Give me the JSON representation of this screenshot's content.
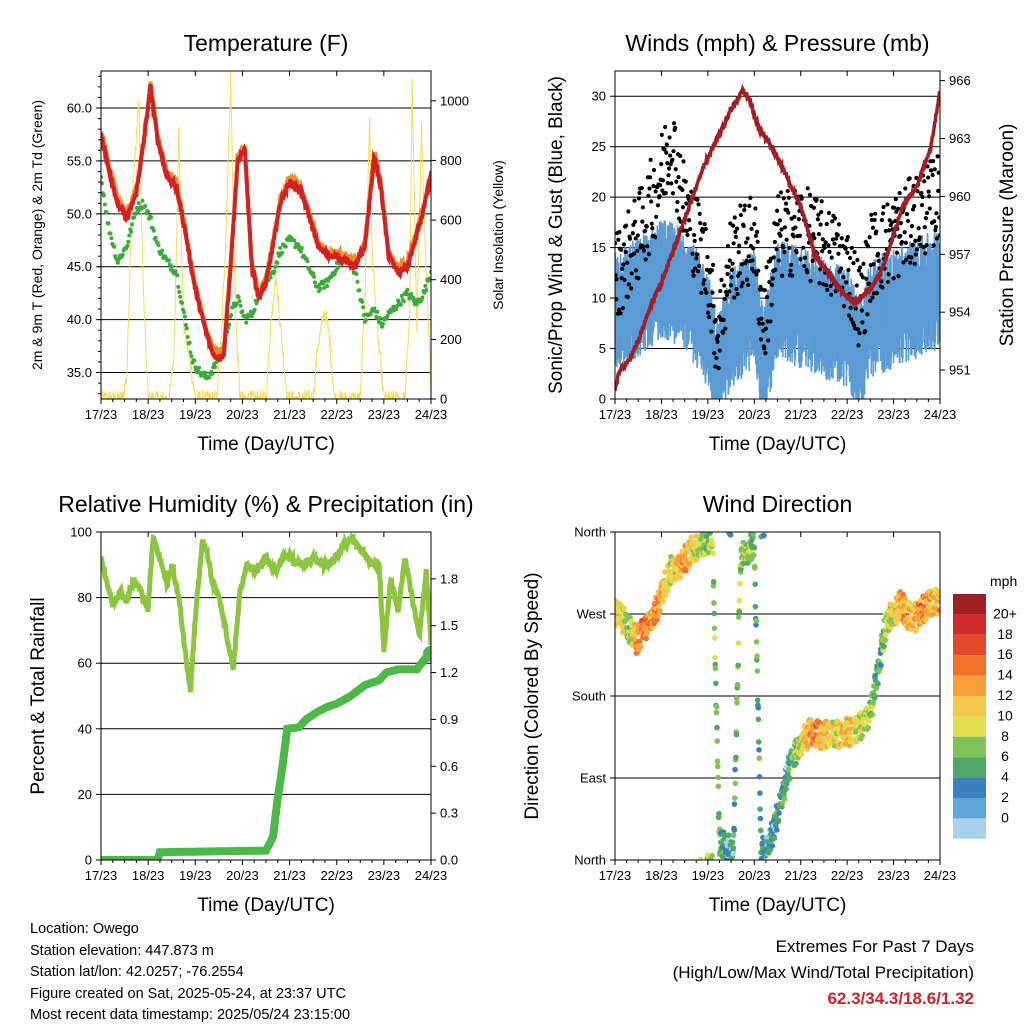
{
  "figure": {
    "location_line": "Location: Owego",
    "elevation_line": "Station elevation: 447.873 m",
    "latlon_line": "Station lat/lon: 42.0257; -76.2554",
    "created_line": "Figure created on Sat, 2025-05-24, at 23:37 UTC",
    "recent_line": "Most recent data timestamp: 2025/05/24 23:15:00",
    "extremes_title": "Extremes For Past 7 Days",
    "extremes_subtitle": "(High/Low/Max Wind/Total Precipitation)",
    "extremes_values": "62.3/34.3/18.6/1.32"
  },
  "colors": {
    "temp_2m": "#d42020",
    "temp_9m": "#f08a30",
    "dewpoint": "#3caa3c",
    "solar": "#f7dc55",
    "wind_sustained": "#5b9bd5",
    "wind_gust": "#000000",
    "pressure": "#a01e24",
    "rh": "#8cc63e",
    "precip": "#4cb848",
    "extremes_text": "#c8242a"
  },
  "chart_data": [
    {
      "type": "line",
      "title": "Temperature (F)",
      "xlabel": "Time (Day/UTC)",
      "ylabel": "2m & 9m T (Red, Orange) & 2m Td (Green)",
      "ylabel_right": "Solar Insolation (Yellow)",
      "x_ticks": [
        "17/23",
        "18/23",
        "19/23",
        "20/23",
        "21/23",
        "22/23",
        "23/23",
        "24/23"
      ],
      "xlim": [
        0,
        7
      ],
      "y_ticks": [
        "35.0",
        "40.0",
        "45.0",
        "50.0",
        "55.0",
        "60.0"
      ],
      "ylim": [
        32.5,
        63.5
      ],
      "y2_ticks": [
        "0",
        "200",
        "400",
        "600",
        "800",
        "1000"
      ],
      "y2lim": [
        0,
        1100
      ],
      "grid": "horizontal",
      "series": [
        {
          "axis": "left",
          "style": "thick-line",
          "x": [
            0,
            0.15,
            0.35,
            0.55,
            0.75,
            0.9,
            1.05,
            1.2,
            1.4,
            1.6,
            1.8,
            1.95,
            2.1,
            2.25,
            2.4,
            2.6,
            2.75,
            2.9,
            3.05,
            3.2,
            3.35,
            3.5,
            3.65,
            3.8,
            4.0,
            4.2,
            4.4,
            4.6,
            4.8,
            5.0,
            5.2,
            5.4,
            5.6,
            5.8,
            5.95,
            6.1,
            6.3,
            6.5,
            6.7,
            6.85,
            7.0
          ],
          "y": [
            57.5,
            54.5,
            51,
            49.5,
            52,
            56.5,
            62,
            57,
            53.5,
            52.5,
            48,
            44,
            41,
            38.5,
            36.5,
            36.5,
            45,
            55,
            56,
            45,
            42,
            43.5,
            47,
            51,
            53,
            52.5,
            50,
            47,
            46,
            46,
            45.5,
            45,
            47,
            55.5,
            52,
            46,
            44.5,
            45,
            48,
            50.5,
            53.5
          ]
        },
        {
          "axis": "left",
          "style": "dots",
          "x": [
            0,
            0.15,
            0.35,
            0.55,
            0.75,
            0.9,
            1.05,
            1.2,
            1.4,
            1.6,
            1.8,
            1.95,
            2.1,
            2.25,
            2.4,
            2.6,
            2.75,
            2.9,
            3.05,
            3.2,
            3.35,
            3.5,
            3.65,
            3.8,
            4.0,
            4.2,
            4.4,
            4.6,
            4.8,
            5.0,
            5.2,
            5.4,
            5.6,
            5.8,
            5.95,
            6.1,
            6.3,
            6.5,
            6.7,
            6.85,
            7.0
          ],
          "y": [
            53.5,
            49,
            45.5,
            47,
            50.5,
            51,
            49.5,
            47,
            45.5,
            44.5,
            39.5,
            36,
            35,
            34.5,
            35.5,
            37.5,
            40.5,
            42,
            40,
            40.5,
            42.5,
            43.5,
            44.5,
            46.5,
            47.5,
            47,
            45,
            43,
            43.5,
            45,
            46,
            44.5,
            40,
            41,
            39.5,
            40.5,
            41.5,
            42.5,
            41.5,
            42.5,
            44.5
          ]
        },
        {
          "axis": "right",
          "style": "thin-line",
          "x": [
            0,
            0.45,
            0.55,
            0.65,
            0.8,
            0.9,
            1.0,
            1.2,
            1.45,
            1.55,
            1.65,
            1.75,
            1.9,
            2.0,
            2.2,
            2.45,
            2.55,
            2.65,
            2.75,
            2.85,
            2.95,
            3.2,
            3.5,
            3.6,
            3.7,
            3.8,
            3.95,
            4.2,
            4.5,
            4.6,
            4.75,
            4.85,
            4.95,
            5.2,
            5.5,
            5.6,
            5.7,
            5.75,
            5.85,
            6.0,
            6.2,
            6.45,
            6.55,
            6.6,
            6.7,
            6.8,
            6.9,
            7.0
          ],
          "y": [
            0,
            0,
            80,
            650,
            1000,
            350,
            0,
            0,
            0,
            150,
            900,
            250,
            120,
            0,
            0,
            0,
            200,
            550,
            1080,
            300,
            0,
            0,
            0,
            250,
            420,
            260,
            0,
            0,
            0,
            180,
            300,
            200,
            0,
            0,
            0,
            350,
            950,
            500,
            250,
            0,
            0,
            0,
            300,
            1050,
            250,
            900,
            400,
            50
          ]
        }
      ]
    },
    {
      "type": "scatter",
      "title": "Winds (mph) & Pressure (mb)",
      "xlabel": "Time (Day/UTC)",
      "ylabel": "Sonic/Prop Wind & Gust (Blue, Black)",
      "ylabel_right": "Station Pressure (Maroon)",
      "x_ticks": [
        "17/23",
        "18/23",
        "19/23",
        "20/23",
        "21/23",
        "22/23",
        "23/23",
        "24/23"
      ],
      "xlim": [
        0,
        7
      ],
      "y_ticks": [
        "0",
        "5",
        "10",
        "15",
        "20",
        "25",
        "30"
      ],
      "ylim": [
        0,
        32.5
      ],
      "y2_ticks": [
        "951",
        "954",
        "957",
        "960",
        "963",
        "966"
      ],
      "y2lim": [
        949.5,
        966.5
      ],
      "grid": "horizontal",
      "series": [
        {
          "axis": "left",
          "style": "band",
          "x": [
            0,
            0.5,
            1.0,
            1.5,
            2.0,
            2.2,
            2.5,
            3.0,
            3.2,
            3.5,
            4.0,
            4.5,
            5.0,
            5.3,
            5.5,
            6.0,
            6.5,
            7.0
          ],
          "y": [
            10,
            11,
            13,
            12,
            8,
            3,
            8,
            10,
            4,
            11,
            10,
            9,
            8,
            5,
            9,
            10,
            11,
            12
          ]
        },
        {
          "axis": "left",
          "style": "dots",
          "x": [
            0,
            0.5,
            1.0,
            1.2,
            1.5,
            2.0,
            2.2,
            2.5,
            3.0,
            3.2,
            3.5,
            4.0,
            4.5,
            5.0,
            5.3,
            5.5,
            6.0,
            6.5,
            7.0
          ],
          "y": [
            12,
            16,
            22,
            26,
            19,
            13,
            6,
            14,
            16,
            7,
            16,
            17,
            15,
            13,
            9,
            14,
            16,
            18,
            20
          ]
        },
        {
          "axis": "right",
          "style": "thick-line",
          "x": [
            0,
            0.1,
            0.3,
            0.5,
            0.8,
            1.0,
            1.3,
            1.6,
            1.9,
            2.2,
            2.5,
            2.75,
            2.9,
            3.1,
            3.4,
            3.7,
            4.0,
            4.3,
            4.6,
            4.9,
            5.2,
            5.4,
            5.6,
            5.8,
            6.0,
            6.2,
            6.5,
            6.8,
            7.0
          ],
          "y": [
            950,
            951,
            951.5,
            952.5,
            954.5,
            955.5,
            957.5,
            959.5,
            961.5,
            963,
            964.5,
            965.5,
            965,
            963.5,
            962.5,
            961,
            959.5,
            957,
            956,
            955,
            954.5,
            955,
            955.5,
            956.5,
            958,
            959.5,
            960.5,
            962.5,
            965.5
          ]
        }
      ]
    },
    {
      "type": "line",
      "title": "Relative Humidity (%) & Precipitation (in)",
      "xlabel": "Time (Day/UTC)",
      "ylabel": "Percent & Total Rainfall",
      "x_ticks": [
        "17/23",
        "18/23",
        "19/23",
        "20/23",
        "21/23",
        "22/23",
        "23/23",
        "24/23"
      ],
      "xlim": [
        0,
        7
      ],
      "y_ticks": [
        "0",
        "20",
        "40",
        "60",
        "80",
        "100"
      ],
      "ylim": [
        0,
        100
      ],
      "y2_ticks": [
        "0.0",
        "0.3",
        "0.6",
        "0.9",
        "1.2",
        "1.5",
        "1.8"
      ],
      "y2lim": [
        0,
        2.1
      ],
      "grid": "horizontal",
      "series": [
        {
          "axis": "left",
          "style": "thick-line",
          "x": [
            0,
            0.1,
            0.25,
            0.4,
            0.55,
            0.7,
            0.85,
            1.0,
            1.1,
            1.25,
            1.4,
            1.5,
            1.65,
            1.8,
            1.9,
            2.0,
            2.15,
            2.25,
            2.35,
            2.5,
            2.65,
            2.8,
            2.95,
            3.1,
            3.3,
            3.5,
            3.7,
            3.9,
            4.1,
            4.3,
            4.5,
            4.7,
            4.9,
            5.1,
            5.3,
            5.5,
            5.7,
            5.9,
            6.0,
            6.15,
            6.3,
            6.45,
            6.6,
            6.75,
            6.9,
            7.0
          ],
          "y": [
            92,
            86,
            78,
            82,
            79,
            86,
            82,
            76,
            98,
            92,
            84,
            90,
            80,
            62,
            52,
            74,
            97,
            94,
            85,
            80,
            70,
            58,
            82,
            90,
            88,
            92,
            88,
            93,
            91,
            90,
            92,
            90,
            91,
            95,
            98,
            95,
            91,
            90,
            64,
            86,
            76,
            92,
            80,
            68,
            88,
            66
          ]
        },
        {
          "axis": "right",
          "style": "thick-line",
          "x": [
            0,
            1.2,
            1.25,
            3.5,
            3.65,
            3.75,
            3.85,
            3.95,
            4.2,
            4.35,
            4.6,
            4.8,
            5.0,
            5.3,
            5.6,
            5.9,
            6.05,
            6.3,
            6.7,
            6.9,
            7.0
          ],
          "y": [
            0,
            0,
            0.05,
            0.06,
            0.15,
            0.4,
            0.6,
            0.84,
            0.85,
            0.9,
            0.95,
            0.98,
            1.0,
            1.05,
            1.12,
            1.15,
            1.2,
            1.22,
            1.22,
            1.3,
            1.32
          ]
        }
      ]
    },
    {
      "type": "scatter",
      "title": "Wind Direction",
      "xlabel": "Time (Day/UTC)",
      "ylabel": "Direction (Colored By Speed)",
      "x_ticks": [
        "17/23",
        "18/23",
        "19/23",
        "20/23",
        "21/23",
        "22/23",
        "23/23",
        "24/23"
      ],
      "xlim": [
        0,
        7
      ],
      "y_ticks": [
        "North",
        "East",
        "South",
        "West",
        "North"
      ],
      "ylim": [
        0,
        360
      ],
      "grid": "horizontal",
      "legend": {
        "title": "mph",
        "labels": [
          "20+",
          "18",
          "16",
          "14",
          "12",
          "10",
          "8",
          "6",
          "4",
          "2",
          "0"
        ],
        "colors": [
          "#a01e24",
          "#d02a2a",
          "#e24a2a",
          "#f0702a",
          "#f7a03c",
          "#f5c84c",
          "#e0df50",
          "#80c25a",
          "#4fa866",
          "#3a80c0",
          "#5ea5da",
          "#a6d2ee"
        ],
        "placement": "right"
      },
      "series": [
        {
          "style": "dots",
          "x": [
            0.0,
            0.15,
            0.3,
            0.45,
            0.6,
            0.75,
            0.9,
            1.05,
            1.2,
            1.35,
            1.5,
            1.65,
            1.8,
            1.95,
            2.1,
            2.25,
            2.4,
            2.55,
            2.7,
            2.85,
            3.0,
            3.15,
            3.3,
            3.45,
            3.6,
            3.75,
            3.9,
            4.05,
            4.2,
            4.35,
            4.5,
            4.65,
            4.8,
            4.95,
            5.1,
            5.25,
            5.4,
            5.55,
            5.7,
            5.85,
            6.0,
            6.15,
            6.3,
            6.45,
            6.6,
            6.75,
            6.9
          ],
          "y": [
            270,
            265,
            255,
            240,
            250,
            262,
            275,
            300,
            318,
            322,
            330,
            340,
            345,
            350,
            355,
            20,
            15,
            8,
            330,
            340,
            345,
            8,
            15,
            40,
            70,
            100,
            120,
            130,
            140,
            138,
            136,
            140,
            138,
            142,
            140,
            145,
            150,
            170,
            220,
            262,
            270,
            280,
            270,
            265,
            275,
            280,
            285
          ],
          "speeds": [
            10,
            9,
            6,
            11,
            14,
            12,
            13,
            11,
            8,
            10,
            12,
            9,
            8,
            6,
            7,
            4,
            2,
            3,
            6,
            7,
            5,
            3,
            2,
            3,
            4,
            3,
            6,
            9,
            12,
            13,
            10,
            8,
            9,
            11,
            10,
            9,
            7,
            6,
            4,
            7,
            9,
            12,
            10,
            11,
            13,
            12,
            11
          ]
        }
      ]
    }
  ]
}
